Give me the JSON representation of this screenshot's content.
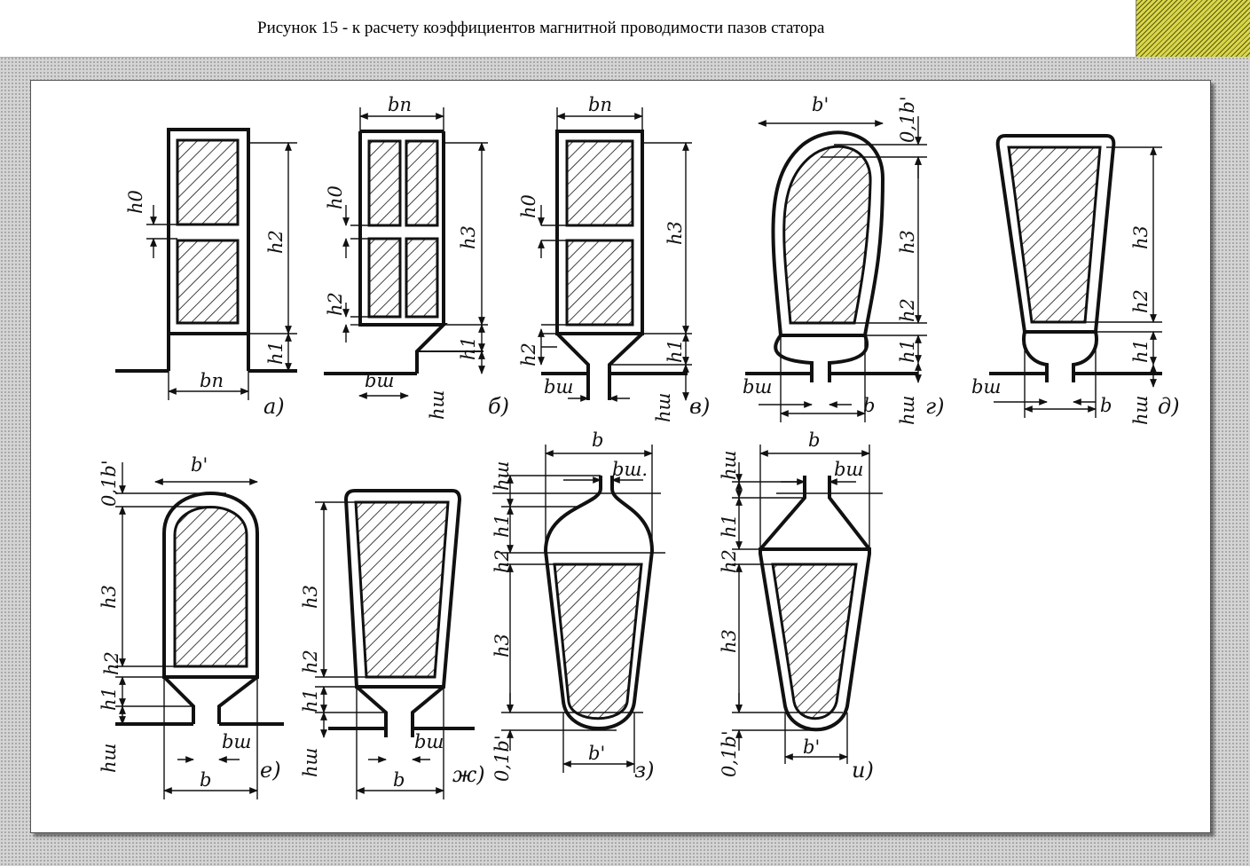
{
  "title": "Рисунок 15 - к расчету коэффициентов магнитной проводимости пазов статора",
  "panels": [
    {
      "id": "a",
      "caption": "а)",
      "labels": {
        "h0": "h0",
        "h2": "h2",
        "h1": "h1",
        "bn_top": "",
        "bn_bottom": "bn"
      }
    },
    {
      "id": "b",
      "caption": "б)",
      "labels": {
        "h0": "h0",
        "h3": "h3",
        "h2": "h2",
        "h1": "h1",
        "bn": "bn",
        "bsh": "bш",
        "hsh": "hш"
      }
    },
    {
      "id": "v",
      "caption": "в)",
      "labels": {
        "h0": "h0",
        "h3": "h3",
        "h2": "h2",
        "h1": "h1",
        "bn": "bn",
        "bsh": "bш",
        "hsh": "hш"
      }
    },
    {
      "id": "g",
      "caption": "г)",
      "labels": {
        "b_prime": "b'",
        "tenth_b": "0,1b'",
        "h3": "h3",
        "h2": "h2",
        "h1": "h1",
        "bsh": "bш",
        "b": "b",
        "hsh": "hш"
      }
    },
    {
      "id": "d",
      "caption": "д)",
      "labels": {
        "h3": "h3",
        "h2": "h2",
        "h1": "h1",
        "bsh": "bш",
        "b": "b",
        "hsh": "hш"
      }
    },
    {
      "id": "e",
      "caption": "е)",
      "labels": {
        "tenth_b": "0,1b'",
        "b_prime": "b'",
        "h3": "h3",
        "h2": "h2",
        "h1": "h1",
        "hsh": "hш",
        "bsh": "bш",
        "b": "b"
      }
    },
    {
      "id": "zh",
      "caption": "ж)",
      "labels": {
        "h3": "h3",
        "h2": "h2",
        "h1": "h1",
        "hsh": "hш",
        "bsh": "bш",
        "b": "b"
      }
    },
    {
      "id": "z",
      "caption": "з)",
      "labels": {
        "b": "b",
        "bsh": "bш.",
        "hsh": "hш",
        "h1": "h1",
        "h2": "h2",
        "h3": "h3",
        "tenth_b": "0,1b'",
        "b_prime": "b'"
      }
    },
    {
      "id": "i",
      "caption": "и)",
      "labels": {
        "b": "b",
        "bsh": "bш",
        "hsh": "hш",
        "h1": "h1",
        "h2": "h2",
        "h3": "h3",
        "tenth_b": "0,1b'",
        "b_prime": "b'"
      }
    }
  ]
}
